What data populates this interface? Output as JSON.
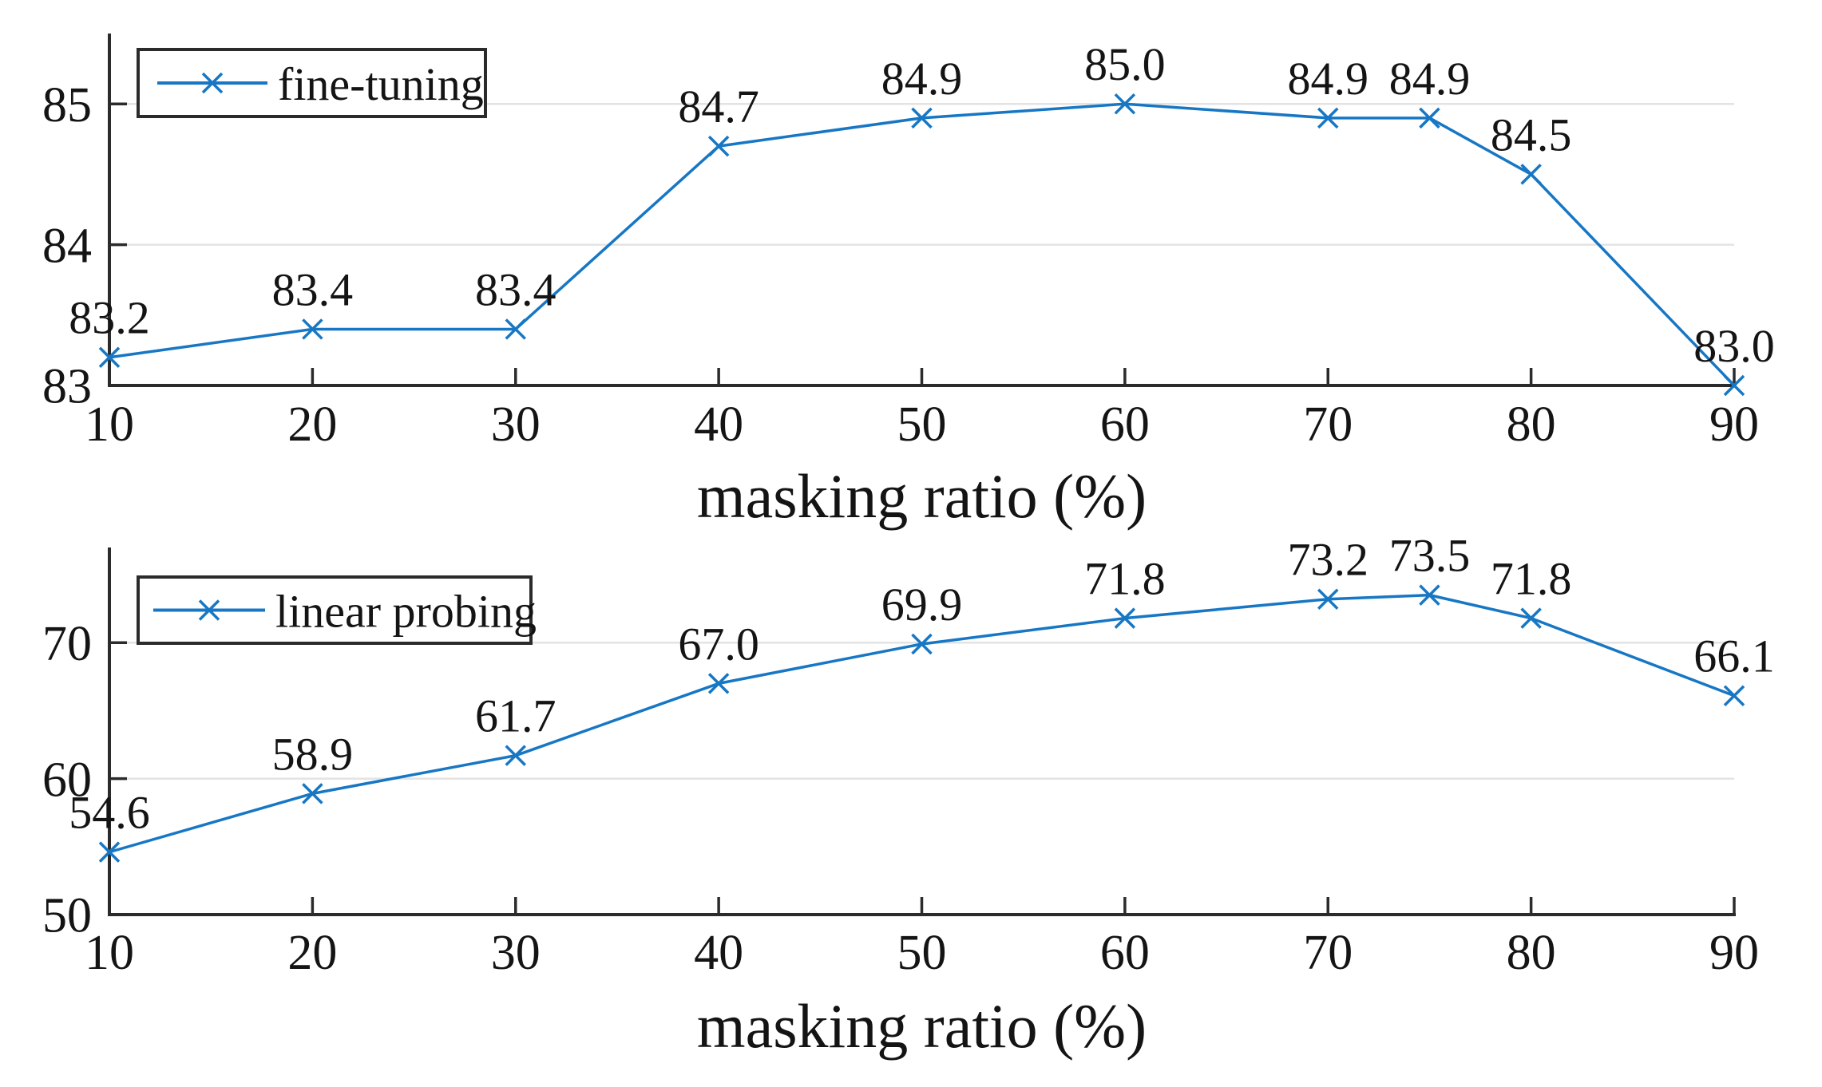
{
  "figure": {
    "background": "#ffffff",
    "series_color": "#1777c4",
    "axis_color": "#2b2b2b",
    "grid_color": "#e3e3e3",
    "text_color": "#141414",
    "legend_border_color": "#2b2b2b",
    "legend_background": "#ffffff"
  },
  "chart_data": [
    {
      "type": "line",
      "legend": "fine-tuning",
      "legend_position": "top-left",
      "marker": "x",
      "x": [
        10,
        20,
        30,
        40,
        50,
        60,
        70,
        75,
        80,
        90
      ],
      "values": [
        83.2,
        83.4,
        83.4,
        84.7,
        84.9,
        85.0,
        84.9,
        84.9,
        84.5,
        83.0
      ],
      "point_labels": [
        "83.2",
        "83.4",
        "83.4",
        "84.7",
        "84.9",
        "85.0",
        "84.9",
        "84.9",
        "84.5",
        "83.0"
      ],
      "xlabel": "masking ratio (%)",
      "ylabel": "",
      "xlim": [
        10,
        90
      ],
      "ylim": [
        83,
        85.5
      ],
      "x_tick_values": [
        10,
        20,
        30,
        40,
        50,
        60,
        70,
        80,
        90
      ],
      "x_tick_labels": [
        "10",
        "20",
        "30",
        "40",
        "50",
        "60",
        "70",
        "80",
        "90"
      ],
      "y_tick_values": [
        83,
        84,
        85
      ],
      "y_tick_labels": [
        "83",
        "84",
        "85"
      ],
      "grid_y_values": [
        84,
        85
      ],
      "grid": "horizontal-only"
    },
    {
      "type": "line",
      "legend": "linear probing",
      "legend_position": "top-left",
      "marker": "x",
      "x": [
        10,
        20,
        30,
        40,
        50,
        60,
        70,
        75,
        80,
        90
      ],
      "values": [
        54.6,
        58.9,
        61.7,
        67.0,
        69.9,
        71.8,
        73.2,
        73.5,
        71.8,
        66.1
      ],
      "point_labels": [
        "54.6",
        "58.9",
        "61.7",
        "67.0",
        "69.9",
        "71.8",
        "73.2",
        "73.5",
        "71.8",
        "66.1"
      ],
      "xlabel": "masking ratio (%)",
      "ylabel": "",
      "xlim": [
        10,
        90
      ],
      "ylim": [
        50,
        77
      ],
      "x_tick_values": [
        10,
        20,
        30,
        40,
        50,
        60,
        70,
        80,
        90
      ],
      "x_tick_labels": [
        "10",
        "20",
        "30",
        "40",
        "50",
        "60",
        "70",
        "80",
        "90"
      ],
      "y_tick_values": [
        50,
        60,
        70
      ],
      "y_tick_labels": [
        "50",
        "60",
        "70"
      ],
      "grid_y_values": [
        60,
        70
      ],
      "grid": "horizontal-only"
    }
  ]
}
